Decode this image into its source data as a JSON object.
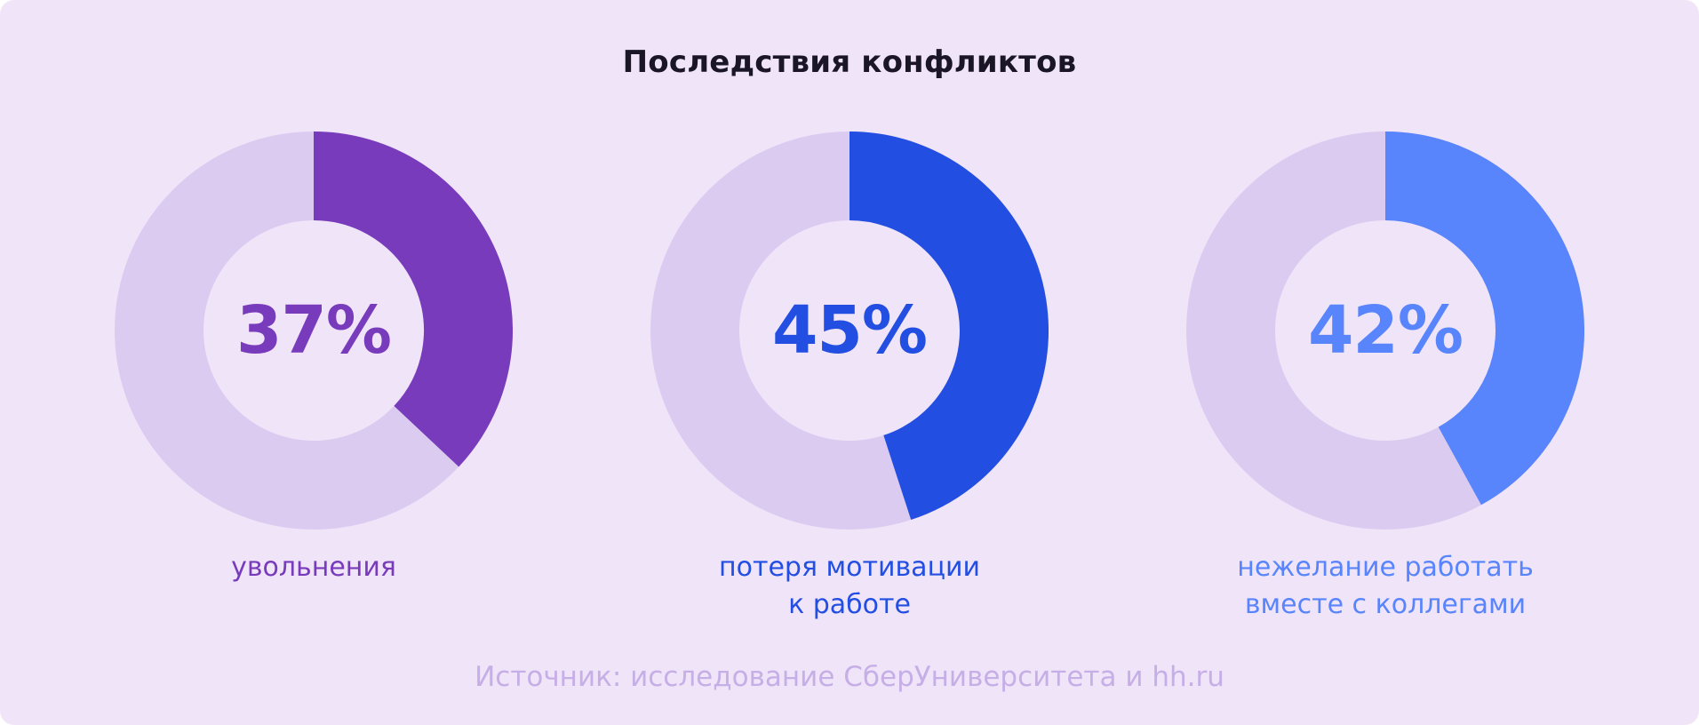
{
  "chart_data": {
    "type": "pie",
    "title": "Последствия конфликтов",
    "items": [
      {
        "label": "увольнения",
        "value": 37,
        "display": "37%",
        "color": "#783bbb"
      },
      {
        "label": "потеря мотивации\nк работе",
        "value": 45,
        "display": "45%",
        "color": "#234ee2"
      },
      {
        "label": "нежелание работать\nвместе с коллегами",
        "value": 42,
        "display": "42%",
        "color": "#5885fc"
      }
    ],
    "track_color": "#dccbf0",
    "source": "Источник: исследование СберУниверситета и hh.ru"
  }
}
